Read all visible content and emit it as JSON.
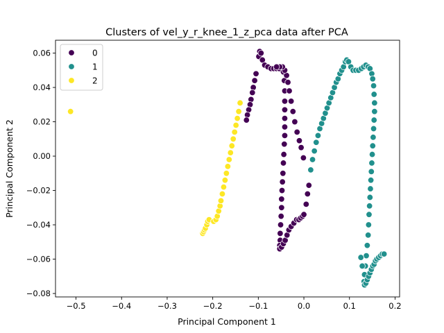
{
  "chart_data": {
    "type": "scatter",
    "title": "Clusters of vel_y_r_knee_1_z_pca data after PCA",
    "xlabel": "Principal Component 1",
    "ylabel": "Principal Component 2",
    "xlim": [
      -0.545,
      0.21
    ],
    "ylim": [
      -0.082,
      0.0675
    ],
    "xticks": [
      -0.5,
      -0.4,
      -0.3,
      -0.2,
      -0.1,
      0.0,
      0.1,
      0.2
    ],
    "xtick_labels": [
      "−0.5",
      "−0.4",
      "−0.3",
      "−0.2",
      "−0.1",
      "0.0",
      "0.1",
      "0.2"
    ],
    "yticks": [
      -0.08,
      -0.06,
      -0.04,
      -0.02,
      0.0,
      0.02,
      0.04,
      0.06
    ],
    "ytick_labels": [
      "−0.08",
      "−0.06",
      "−0.04",
      "−0.02",
      "0.00",
      "0.02",
      "0.04",
      "0.06"
    ],
    "grid": false,
    "legend": {
      "placement": "top-left"
    },
    "series": [
      {
        "name": "0",
        "color": "#440154",
        "points": [
          [
            -0.105,
            0.048
          ],
          [
            -0.108,
            0.044
          ],
          [
            -0.111,
            0.04
          ],
          [
            -0.113,
            0.037
          ],
          [
            -0.116,
            0.033
          ],
          [
            -0.118,
            0.03
          ],
          [
            -0.121,
            0.027
          ],
          [
            -0.124,
            0.024
          ],
          [
            -0.126,
            0.021
          ],
          [
            -0.099,
            0.058
          ],
          [
            -0.097,
            0.061
          ],
          [
            -0.094,
            0.06
          ],
          [
            -0.091,
            0.056
          ],
          [
            -0.086,
            0.053
          ],
          [
            -0.079,
            0.052
          ],
          [
            -0.072,
            0.051
          ],
          [
            -0.066,
            0.051
          ],
          [
            -0.06,
            0.051
          ],
          [
            -0.054,
            0.051
          ],
          [
            -0.049,
            0.052
          ],
          [
            -0.045,
            0.049
          ],
          [
            -0.043,
            0.044
          ],
          [
            -0.042,
            0.038
          ],
          [
            -0.042,
            0.032
          ],
          [
            -0.042,
            0.027
          ],
          [
            -0.042,
            0.022
          ],
          [
            -0.042,
            0.017
          ],
          [
            -0.042,
            0.012
          ],
          [
            -0.043,
            0.007
          ],
          [
            -0.044,
            0.001
          ],
          [
            -0.045,
            -0.004
          ],
          [
            -0.046,
            -0.01
          ],
          [
            -0.047,
            -0.015
          ],
          [
            -0.048,
            -0.02
          ],
          [
            -0.049,
            -0.025
          ],
          [
            -0.049,
            -0.03
          ],
          [
            -0.05,
            -0.035
          ],
          [
            -0.051,
            -0.04
          ],
          [
            -0.052,
            -0.045
          ],
          [
            -0.052,
            -0.049
          ],
          [
            -0.053,
            -0.052
          ],
          [
            -0.053,
            -0.054
          ],
          [
            -0.049,
            -0.053
          ],
          [
            -0.045,
            -0.051
          ],
          [
            -0.041,
            -0.049
          ],
          [
            -0.037,
            -0.046
          ],
          [
            -0.033,
            -0.043
          ],
          [
            -0.028,
            -0.041
          ],
          [
            -0.022,
            -0.039
          ],
          [
            -0.016,
            -0.037
          ],
          [
            -0.011,
            -0.037
          ],
          [
            -0.007,
            -0.036
          ],
          [
            -0.003,
            -0.035
          ],
          [
            0.0,
            -0.034
          ],
          [
            0.005,
            -0.028
          ],
          [
            0.008,
            -0.022
          ],
          [
            0.011,
            -0.017
          ],
          [
            -0.001,
            -0.001
          ],
          [
            -0.006,
            0.005
          ],
          [
            -0.01,
            0.009
          ],
          [
            -0.015,
            0.014
          ],
          [
            -0.02,
            0.02
          ],
          [
            -0.024,
            0.026
          ],
          [
            -0.028,
            0.032
          ],
          [
            -0.032,
            0.038
          ],
          [
            -0.035,
            0.043
          ],
          [
            -0.038,
            0.047
          ],
          [
            -0.042,
            0.05
          ],
          [
            -0.047,
            0.052
          ],
          [
            -0.053,
            0.052
          ],
          [
            -0.06,
            0.052
          ]
        ]
      },
      {
        "name": "1",
        "color": "#21908d",
        "points": [
          [
            0.015,
            -0.008
          ],
          [
            0.019,
            -0.002
          ],
          [
            0.023,
            0.003
          ],
          [
            0.027,
            0.008
          ],
          [
            0.031,
            0.012
          ],
          [
            0.035,
            0.016
          ],
          [
            0.039,
            0.019
          ],
          [
            0.043,
            0.022
          ],
          [
            0.047,
            0.025
          ],
          [
            0.051,
            0.028
          ],
          [
            0.055,
            0.031
          ],
          [
            0.059,
            0.034
          ],
          [
            0.063,
            0.037
          ],
          [
            0.067,
            0.04
          ],
          [
            0.071,
            0.043
          ],
          [
            0.075,
            0.045
          ],
          [
            0.079,
            0.048
          ],
          [
            0.083,
            0.05
          ],
          [
            0.087,
            0.052
          ],
          [
            0.091,
            0.055
          ],
          [
            0.094,
            0.056
          ],
          [
            0.098,
            0.055
          ],
          [
            0.103,
            0.052
          ],
          [
            0.108,
            0.05
          ],
          [
            0.114,
            0.05
          ],
          [
            0.12,
            0.05
          ],
          [
            0.126,
            0.051
          ],
          [
            0.131,
            0.052
          ],
          [
            0.136,
            0.053
          ],
          [
            0.141,
            0.052
          ],
          [
            0.145,
            0.051
          ],
          [
            0.149,
            0.048
          ],
          [
            0.151,
            0.045
          ],
          [
            0.153,
            0.041
          ],
          [
            0.154,
            0.036
          ],
          [
            0.155,
            0.031
          ],
          [
            0.155,
            0.026
          ],
          [
            0.154,
            0.021
          ],
          [
            0.153,
            0.016
          ],
          [
            0.152,
            0.011
          ],
          [
            0.151,
            0.006
          ],
          [
            0.15,
            0.001
          ],
          [
            0.149,
            -0.004
          ],
          [
            0.148,
            -0.009
          ],
          [
            0.147,
            -0.014
          ],
          [
            0.146,
            -0.019
          ],
          [
            0.145,
            -0.024
          ],
          [
            0.144,
            -0.029
          ],
          [
            0.143,
            -0.034
          ],
          [
            0.142,
            -0.04
          ],
          [
            0.141,
            -0.046
          ],
          [
            0.139,
            -0.052
          ],
          [
            0.137,
            -0.058
          ],
          [
            0.135,
            -0.064
          ],
          [
            0.133,
            -0.069
          ],
          [
            0.132,
            -0.073
          ],
          [
            0.133,
            -0.075
          ],
          [
            0.136,
            -0.074
          ],
          [
            0.139,
            -0.072
          ],
          [
            0.142,
            -0.07
          ],
          [
            0.145,
            -0.068
          ],
          [
            0.148,
            -0.066
          ],
          [
            0.151,
            -0.064
          ],
          [
            0.154,
            -0.063
          ],
          [
            0.157,
            -0.061
          ],
          [
            0.16,
            -0.06
          ],
          [
            0.164,
            -0.059
          ],
          [
            0.168,
            -0.058
          ],
          [
            0.172,
            -0.057
          ],
          [
            0.176,
            -0.057
          ],
          [
            0.128,
            -0.064
          ],
          [
            0.125,
            -0.059
          ]
        ]
      },
      {
        "name": "2",
        "color": "#fde725",
        "points": [
          [
            -0.512,
            0.026
          ],
          [
            -0.222,
            -0.045
          ],
          [
            -0.22,
            -0.044
          ],
          [
            -0.218,
            -0.043
          ],
          [
            -0.216,
            -0.042
          ],
          [
            -0.213,
            -0.04
          ],
          [
            -0.211,
            -0.038
          ],
          [
            -0.208,
            -0.037
          ],
          [
            -0.198,
            -0.038
          ],
          [
            -0.193,
            -0.037
          ],
          [
            -0.19,
            -0.035
          ],
          [
            -0.187,
            -0.032
          ],
          [
            -0.184,
            -0.029
          ],
          [
            -0.182,
            -0.026
          ],
          [
            -0.179,
            -0.022
          ],
          [
            -0.176,
            -0.018
          ],
          [
            -0.173,
            -0.014
          ],
          [
            -0.17,
            -0.01
          ],
          [
            -0.167,
            -0.006
          ],
          [
            -0.164,
            -0.002
          ],
          [
            -0.161,
            0.002
          ],
          [
            -0.158,
            0.006
          ],
          [
            -0.155,
            0.01
          ],
          [
            -0.152,
            0.014
          ],
          [
            -0.149,
            0.018
          ],
          [
            -0.146,
            0.022
          ],
          [
            -0.143,
            0.026
          ],
          [
            -0.14,
            0.031
          ]
        ]
      }
    ]
  }
}
